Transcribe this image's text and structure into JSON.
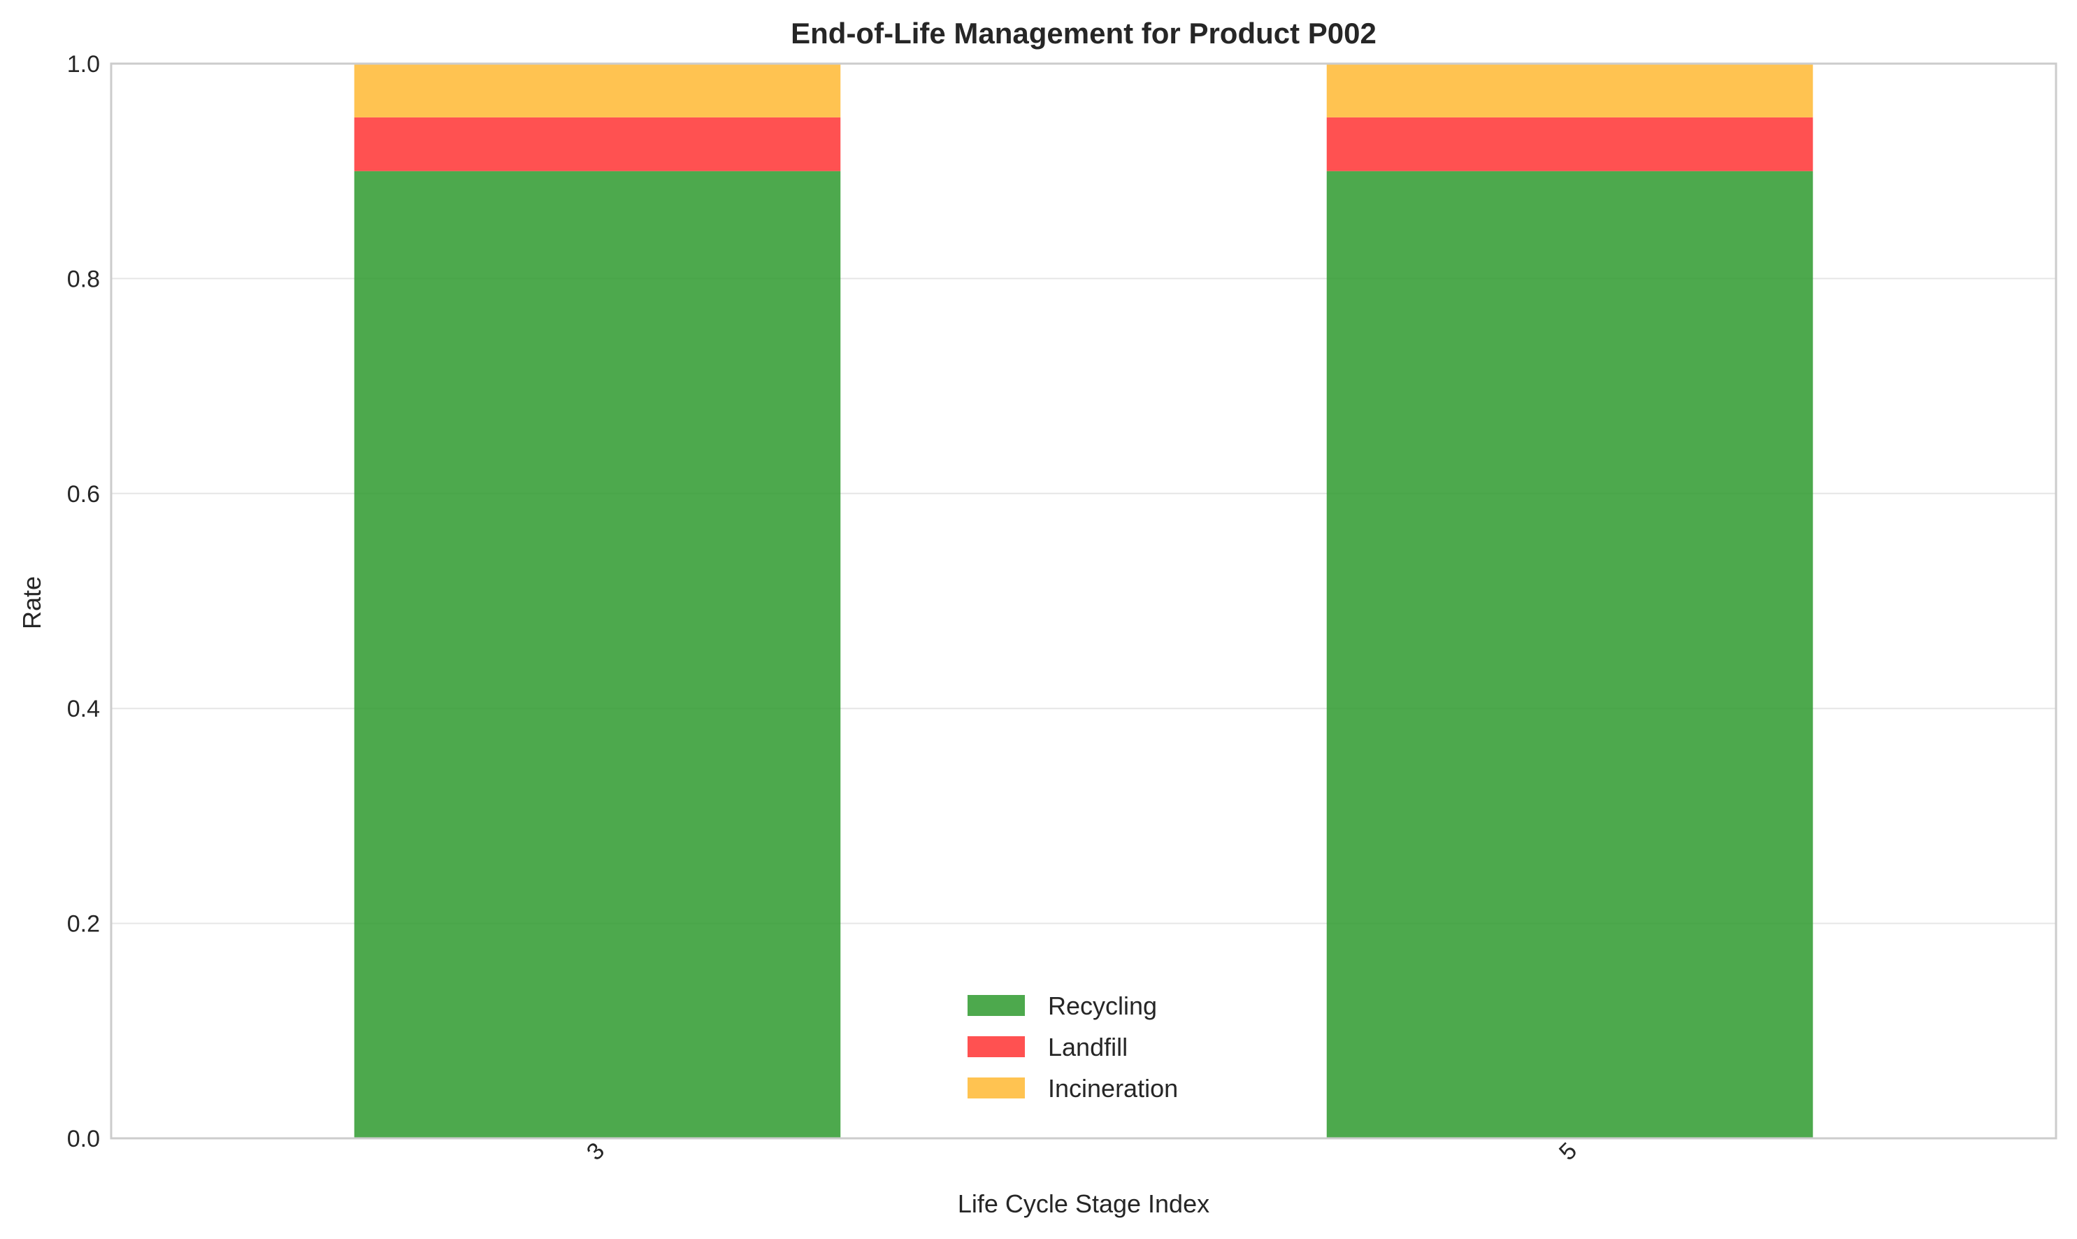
{
  "chart_data": {
    "type": "bar",
    "stacked": true,
    "title": "End-of-Life Management for Product P002",
    "xlabel": "Life Cycle Stage Index",
    "ylabel": "Rate",
    "categories": [
      "3",
      "5"
    ],
    "ylim": [
      0,
      1.0
    ],
    "yticks": [
      "0.0",
      "0.2",
      "0.4",
      "0.6",
      "0.8",
      "1.0"
    ],
    "grid": true,
    "legend_position": "bottom-center",
    "series": [
      {
        "name": "Recycling",
        "values": [
          0.9,
          0.9
        ],
        "color": "#2e9a2e"
      },
      {
        "name": "Landfill",
        "values": [
          0.05,
          0.05
        ],
        "color": "#ff3333"
      },
      {
        "name": "Incineration",
        "values": [
          0.05,
          0.05
        ],
        "color": "#ffb833"
      }
    ]
  }
}
